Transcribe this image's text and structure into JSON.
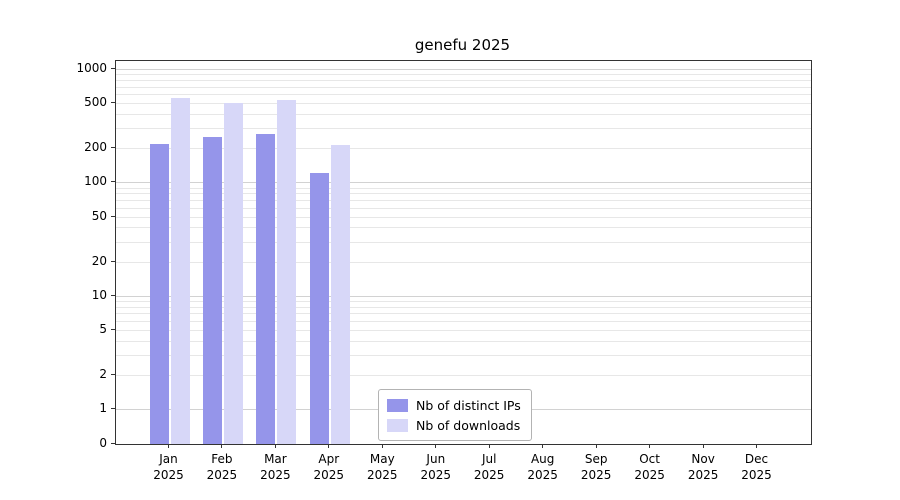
{
  "chart_data": {
    "type": "bar",
    "title": "genefu 2025",
    "categories": [
      "Jan",
      "Feb",
      "Mar",
      "Apr",
      "May",
      "Jun",
      "Jul",
      "Aug",
      "Sep",
      "Oct",
      "Nov",
      "Dec"
    ],
    "year": "2025",
    "series": [
      {
        "name": "Nb of distinct IPs",
        "color": "#9595ea",
        "values": [
          220,
          250,
          265,
          120,
          0,
          0,
          0,
          0,
          0,
          0,
          0,
          0
        ]
      },
      {
        "name": "Nb of downloads",
        "color": "#d7d7f8",
        "values": [
          560,
          500,
          530,
          215,
          0,
          0,
          0,
          0,
          0,
          0,
          0,
          0
        ]
      }
    ],
    "yscale": "symlog",
    "yticks": [
      0,
      1,
      2,
      5,
      10,
      20,
      50,
      100,
      200,
      500,
      1000
    ],
    "ylim": [
      0,
      1000
    ],
    "grid": true,
    "legend_position": "bottom-center-inside",
    "colors": {
      "distinct_ips": "#9595ea",
      "downloads": "#d7d7f8",
      "grid_minor": "#e7e7e7",
      "grid_major": "#d2d2d2",
      "spine": "#333333"
    }
  }
}
